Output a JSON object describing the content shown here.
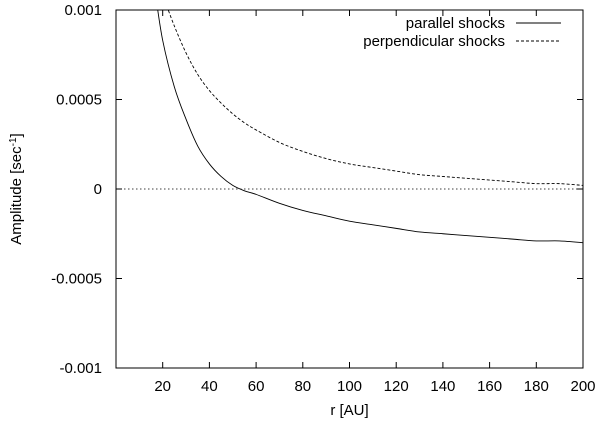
{
  "chart_data": {
    "type": "line",
    "xlabel": "r [AU]",
    "ylabel": "Amplitude [sec",
    "ylabel_superscript": "-1",
    "ylabel_suffix": "]",
    "xlim": [
      0,
      200
    ],
    "ylim": [
      -0.001,
      0.001
    ],
    "x_ticks": [
      20,
      40,
      60,
      80,
      100,
      120,
      140,
      160,
      180,
      200
    ],
    "x_tick_labels": [
      "20",
      "40",
      "60",
      "80",
      "100",
      "120",
      "140",
      "160",
      "180",
      "200"
    ],
    "y_ticks": [
      0.001,
      0.0005,
      0,
      -0.0005,
      -0.001
    ],
    "y_tick_labels": [
      "0.001",
      "0.0005",
      "0",
      "-0.0005",
      "-0.001"
    ],
    "grid": false,
    "legend_position": "top-right",
    "zero_line": true,
    "series": [
      {
        "name": "parallel shocks",
        "style": "solid",
        "color": "#000000",
        "x": [
          17,
          20,
          25,
          30,
          35,
          40,
          45,
          50,
          55,
          60,
          70,
          80,
          90,
          100,
          110,
          120,
          130,
          140,
          150,
          160,
          170,
          180,
          190,
          200
        ],
        "y": [
          0.00108,
          0.00083,
          0.00057,
          0.00039,
          0.00024,
          0.00014,
          7e-05,
          2e-05,
          -1e-05,
          -3e-05,
          -8e-05,
          -0.00012,
          -0.00015,
          -0.00018,
          -0.0002,
          -0.00022,
          -0.00024,
          -0.00025,
          -0.00026,
          -0.00027,
          -0.00028,
          -0.00029,
          -0.00029,
          -0.0003
        ]
      },
      {
        "name": "perpendicular shocks",
        "style": "dashed",
        "color": "#000000",
        "x": [
          21,
          25,
          30,
          35,
          40,
          45,
          50,
          55,
          60,
          70,
          80,
          90,
          100,
          110,
          120,
          130,
          140,
          150,
          160,
          170,
          180,
          190,
          200
        ],
        "y": [
          0.00105,
          0.00091,
          0.00076,
          0.00064,
          0.00055,
          0.00048,
          0.00042,
          0.00037,
          0.00033,
          0.00026,
          0.00021,
          0.00017,
          0.00014,
          0.00012,
          0.0001,
          8e-05,
          7e-05,
          6e-05,
          5e-05,
          4e-05,
          3e-05,
          3e-05,
          2e-05
        ]
      }
    ]
  }
}
